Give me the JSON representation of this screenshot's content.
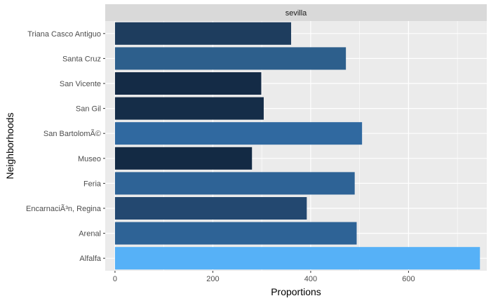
{
  "chart_data": {
    "type": "bar",
    "orientation": "horizontal",
    "facet_label": "sevilla",
    "xlabel": "Proportions",
    "ylabel": "Neighborhoods",
    "xlim": [
      -20,
      760
    ],
    "x_ticks": [
      0,
      200,
      400,
      600
    ],
    "x_tick_labels": [
      "0",
      "200",
      "400",
      "600"
    ],
    "grid": true,
    "categories": [
      "Triana Casco Antiguo",
      "Santa Cruz",
      "San Vicente",
      "San Gil",
      "San BartolomÃ©",
      "Museo",
      "Feria",
      "EncarnaciÃ³n, Regina",
      "Arenal",
      "Alfalfa"
    ],
    "values": [
      360,
      472,
      299,
      304,
      505,
      280,
      490,
      392,
      494,
      746
    ],
    "bar_colors": [
      "#1e3d5e",
      "#2d5f8c",
      "#142b46",
      "#152d48",
      "#3069a0",
      "#132a44",
      "#2e6396",
      "#234870",
      "#2e6396",
      "#56b1f7"
    ],
    "panel_background": "#ebebeb",
    "strip_background": "#d9d9d9",
    "gridline_color": "#ffffff"
  }
}
